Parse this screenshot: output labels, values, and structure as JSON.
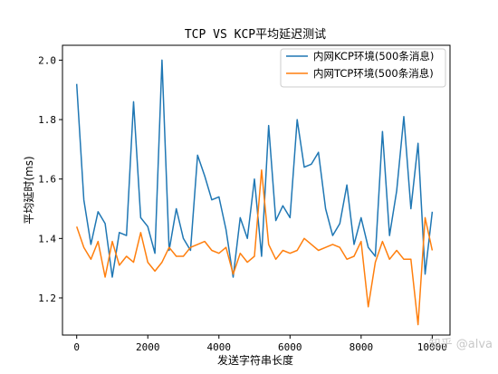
{
  "chart_data": {
    "type": "line",
    "title": "TCP VS KCP平均延迟测试",
    "xlabel": "发送字符串长度",
    "ylabel": "平均延时(ms)",
    "xlim": [
      -400,
      10500
    ],
    "ylim": [
      1.075,
      2.05
    ],
    "x_ticks": [
      0,
      2000,
      4000,
      6000,
      8000,
      10000
    ],
    "y_ticks": [
      1.2,
      1.4,
      1.6,
      1.8,
      2.0
    ],
    "grid": false,
    "legend_position": "top-right",
    "x": [
      0,
      200,
      400,
      600,
      800,
      1000,
      1200,
      1400,
      1600,
      1800,
      2000,
      2200,
      2400,
      2600,
      2800,
      3000,
      3200,
      3400,
      3600,
      3800,
      4000,
      4200,
      4400,
      4600,
      4800,
      5000,
      5200,
      5400,
      5600,
      5800,
      6000,
      6200,
      6400,
      6600,
      6800,
      7000,
      7200,
      7400,
      7600,
      7800,
      8000,
      8200,
      8400,
      8600,
      8800,
      9000,
      9200,
      9400,
      9600,
      9800,
      10000
    ],
    "series": [
      {
        "name": "内网KCP环境(500条消息)",
        "color": "#1f77b4",
        "values": [
          1.92,
          1.53,
          1.38,
          1.49,
          1.45,
          1.27,
          1.42,
          1.41,
          1.86,
          1.47,
          1.44,
          1.35,
          2.0,
          1.36,
          1.5,
          1.4,
          1.36,
          1.68,
          1.61,
          1.53,
          1.54,
          1.43,
          1.27,
          1.47,
          1.4,
          1.6,
          1.34,
          1.78,
          1.46,
          1.51,
          1.47,
          1.8,
          1.64,
          1.65,
          1.69,
          1.5,
          1.41,
          1.45,
          1.58,
          1.38,
          1.47,
          1.37,
          1.34,
          1.76,
          1.41,
          1.56,
          1.81,
          1.5,
          1.72,
          1.28,
          1.49
        ]
      },
      {
        "name": "内网TCP环境(500条消息)",
        "color": "#ff7f0e",
        "values": [
          1.44,
          1.37,
          1.33,
          1.39,
          1.27,
          1.39,
          1.31,
          1.34,
          1.32,
          1.42,
          1.32,
          1.29,
          1.32,
          1.37,
          1.34,
          1.34,
          1.37,
          1.38,
          1.39,
          1.36,
          1.35,
          1.37,
          1.28,
          1.35,
          1.32,
          1.34,
          1.63,
          1.38,
          1.33,
          1.36,
          1.35,
          1.36,
          1.4,
          1.38,
          1.36,
          1.37,
          1.38,
          1.37,
          1.33,
          1.34,
          1.39,
          1.17,
          1.32,
          1.39,
          1.33,
          1.36,
          1.33,
          1.33,
          1.11,
          1.47,
          1.36
        ]
      }
    ]
  },
  "watermark": "知乎 @alva"
}
